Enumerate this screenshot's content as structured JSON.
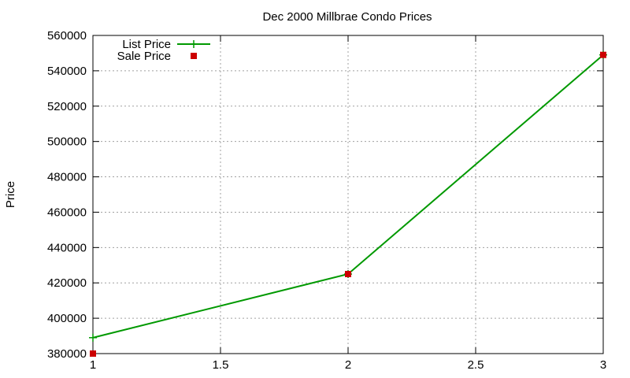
{
  "chart_data": {
    "type": "line",
    "title": "Dec 2000 Millbrae Condo Prices",
    "xlabel": "",
    "ylabel": "Price",
    "xlim": [
      1,
      3
    ],
    "ylim": [
      380000,
      560000
    ],
    "xticks": [
      1,
      1.5,
      2,
      2.5,
      3
    ],
    "xtick_labels": [
      "1",
      "1.5",
      "2",
      "2.5",
      "3"
    ],
    "yticks": [
      380000,
      400000,
      420000,
      440000,
      460000,
      480000,
      500000,
      520000,
      540000,
      560000
    ],
    "ytick_labels": [
      "380000",
      "400000",
      "420000",
      "440000",
      "460000",
      "480000",
      "500000",
      "520000",
      "540000",
      "560000"
    ],
    "grid": true,
    "legend_position": "top-left",
    "series": [
      {
        "name": "List Price",
        "style": "linespoints",
        "color": "#009900",
        "marker": "plus",
        "x": [
          1,
          2,
          3
        ],
        "y": [
          389000,
          425000,
          549000
        ]
      },
      {
        "name": "Sale Price",
        "style": "points",
        "color": "#cc0000",
        "marker": "square",
        "x": [
          1,
          2,
          3
        ],
        "y": [
          380000,
          425000,
          549000
        ]
      }
    ]
  }
}
